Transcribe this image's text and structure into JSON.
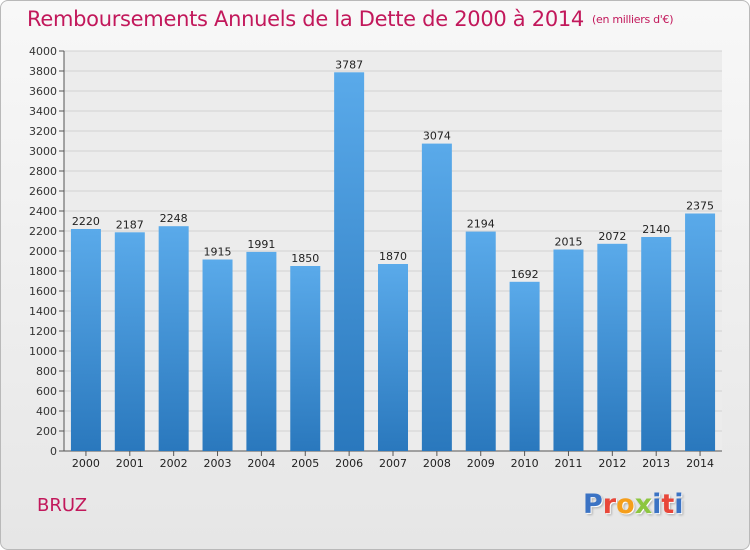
{
  "header": {
    "title": "Remboursements Annuels de la Dette de 2000 à 2014",
    "subtitle": "(en milliers d'€)"
  },
  "footer": {
    "town": "BRUZ",
    "brand": "Proxiti"
  },
  "colors": {
    "title": "#c2185b",
    "bar_light": "#5aaaea",
    "bar_dark": "#2a78bd",
    "grid": "#d2d2d2"
  },
  "chart_data": {
    "type": "bar",
    "title": "Remboursements Annuels de la Dette de 2000 à 2014",
    "xlabel": "",
    "ylabel": "",
    "ylim": [
      0,
      4000
    ],
    "yticks": [
      0,
      200,
      400,
      600,
      800,
      1000,
      1200,
      1400,
      1600,
      1800,
      2000,
      2200,
      2400,
      2600,
      2800,
      3000,
      3200,
      3400,
      3600,
      3800,
      4000
    ],
    "grid": true,
    "categories": [
      "2000",
      "2001",
      "2002",
      "2003",
      "2004",
      "2005",
      "2006",
      "2007",
      "2008",
      "2009",
      "2010",
      "2011",
      "2012",
      "2013",
      "2014"
    ],
    "values": [
      2220,
      2187,
      2248,
      1915,
      1991,
      1850,
      3787,
      1870,
      3074,
      2194,
      1692,
      2015,
      2072,
      2140,
      2375
    ]
  }
}
